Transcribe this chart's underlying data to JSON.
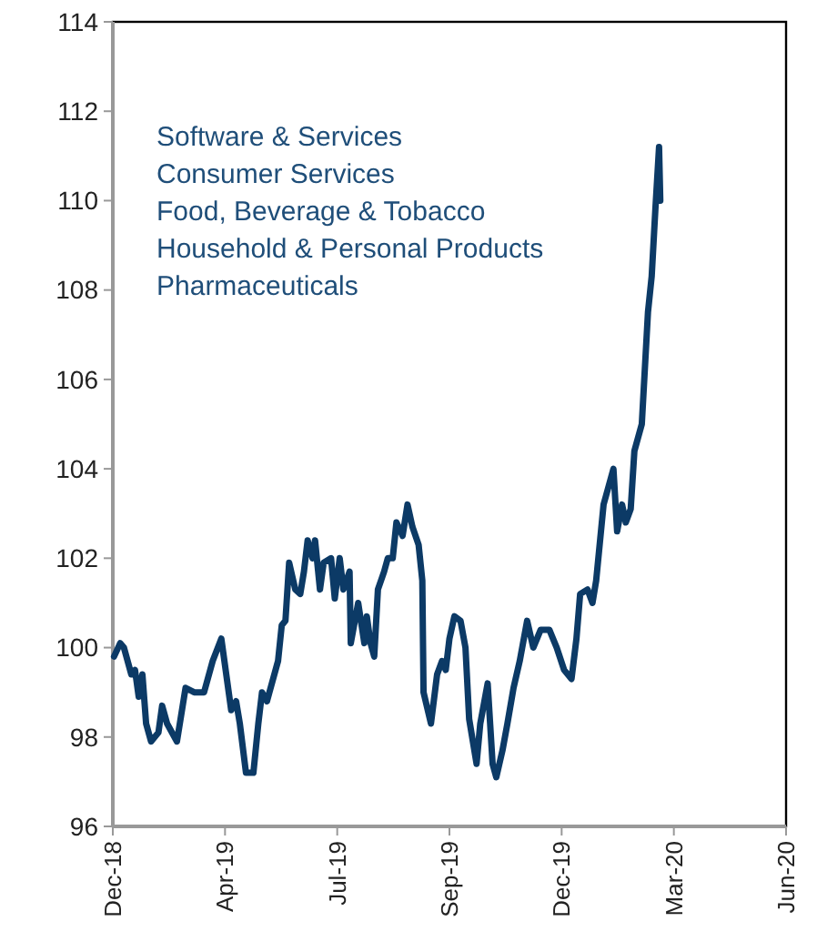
{
  "chart_data": {
    "type": "line",
    "annotations": [
      "Software & Services",
      "Consumer Services",
      "Food, Beverage & Tobacco",
      "Household & Personal Products",
      "Pharmaceuticals"
    ],
    "x": [
      "2019-01-01",
      "2019-01-06",
      "2019-01-09",
      "2019-01-15",
      "2019-01-18",
      "2019-01-21",
      "2019-01-24",
      "2019-01-27",
      "2019-01-31",
      "2019-02-06",
      "2019-02-09",
      "2019-02-13",
      "2019-02-21",
      "2019-02-28",
      "2019-03-07",
      "2019-03-15",
      "2019-03-22",
      "2019-03-29",
      "2019-04-06",
      "2019-04-10",
      "2019-04-13",
      "2019-04-18",
      "2019-04-24",
      "2019-04-28",
      "2019-05-01",
      "2019-05-05",
      "2019-05-14",
      "2019-05-17",
      "2019-05-20",
      "2019-05-23",
      "2019-05-28",
      "2019-06-01",
      "2019-06-04",
      "2019-06-07",
      "2019-06-11",
      "2019-06-13",
      "2019-06-17",
      "2019-06-20",
      "2019-06-26",
      "2019-06-29",
      "2019-07-03",
      "2019-07-06",
      "2019-07-11",
      "2019-07-12",
      "2019-07-18",
      "2019-07-23",
      "2019-07-25",
      "2019-07-28",
      "2019-07-31",
      "2019-08-03",
      "2019-08-08",
      "2019-08-11",
      "2019-08-15",
      "2019-08-18",
      "2019-08-23",
      "2019-08-27",
      "2019-08-31",
      "2019-09-05",
      "2019-09-08",
      "2019-09-09",
      "2019-09-15",
      "2019-09-20",
      "2019-09-24",
      "2019-09-27",
      "2019-09-30",
      "2019-10-04",
      "2019-10-09",
      "2019-10-13",
      "2019-10-16",
      "2019-10-22",
      "2019-10-25",
      "2019-10-31",
      "2019-11-04",
      "2019-11-07",
      "2019-11-12",
      "2019-11-16",
      "2019-11-21",
      "2019-11-26",
      "2019-12-02",
      "2019-12-07",
      "2019-12-13",
      "2019-12-20",
      "2019-12-26",
      "2020-01-01",
      "2020-01-07",
      "2020-01-11",
      "2020-01-14",
      "2020-01-20",
      "2020-01-24",
      "2020-01-27",
      "2020-02-02",
      "2020-02-04",
      "2020-02-10",
      "2020-02-13",
      "2020-02-17",
      "2020-02-20",
      "2020-02-24",
      "2020-02-27",
      "2020-03-04",
      "2020-03-09",
      "2020-03-12",
      "2020-03-15",
      "2020-03-18",
      "2020-03-19"
    ],
    "series": [
      {
        "color": "#0c3a66",
        "values": [
          99.8,
          100.1,
          100.0,
          99.4,
          99.5,
          98.9,
          99.4,
          98.3,
          97.9,
          98.1,
          98.7,
          98.3,
          97.9,
          99.1,
          99.0,
          99.0,
          99.7,
          100.2,
          98.6,
          98.8,
          98.3,
          97.2,
          97.2,
          98.3,
          99.0,
          98.8,
          99.7,
          100.5,
          100.6,
          101.9,
          101.3,
          101.2,
          101.7,
          102.4,
          102.0,
          102.4,
          101.3,
          101.9,
          102.0,
          101.1,
          102.0,
          101.3,
          101.7,
          100.1,
          101.0,
          100.1,
          100.7,
          100.1,
          99.8,
          101.3,
          101.7,
          102.0,
          102.0,
          102.8,
          102.5,
          103.2,
          102.7,
          102.3,
          101.5,
          99.0,
          98.3,
          99.4,
          99.7,
          99.5,
          100.2,
          100.7,
          100.6,
          100.0,
          98.4,
          97.4,
          98.3,
          99.2,
          97.4,
          97.1,
          97.7,
          98.3,
          99.1,
          99.7,
          100.6,
          100.0,
          100.4,
          100.4,
          100.0,
          99.5,
          99.3,
          100.2,
          101.2,
          101.3,
          101.0,
          101.5,
          103.2,
          103.4,
          104.0,
          102.6,
          103.2,
          102.8,
          103.1,
          104.4,
          105.0,
          107.5,
          108.3,
          109.8,
          111.2,
          110.0
        ]
      }
    ],
    "xlim": [
      "2018-12-31",
      "2020-06-29"
    ],
    "xticks": [
      {
        "value": "2018-12-31",
        "label": "Dec-18"
      },
      {
        "value": "2019-04-01",
        "label": "Apr-19"
      },
      {
        "value": "2019-07-01",
        "label": "Jul-19"
      },
      {
        "value": "2019-09-30",
        "label": "Sep-19"
      },
      {
        "value": "2019-12-30",
        "label": "Dec-19"
      },
      {
        "value": "2020-03-30",
        "label": "Mar-20"
      },
      {
        "value": "2020-06-29",
        "label": "Jun-20"
      }
    ],
    "ylim": [
      96,
      114
    ],
    "yticks": [
      96,
      98,
      100,
      102,
      104,
      106,
      108,
      110,
      112,
      114
    ],
    "line_style": "solid"
  }
}
